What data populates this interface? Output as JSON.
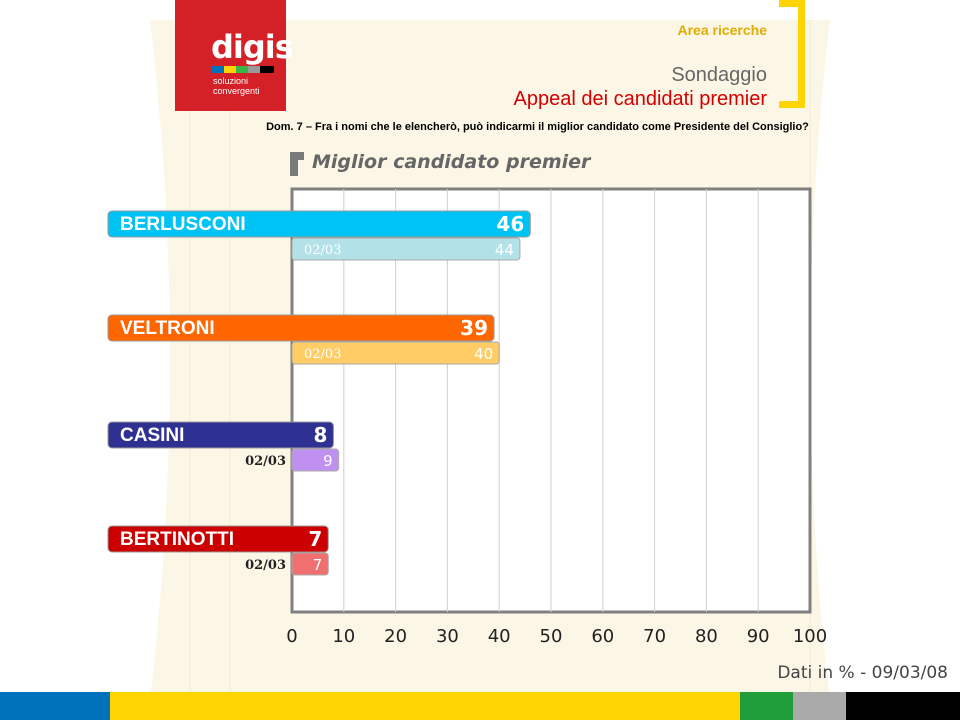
{
  "header": {
    "logo_word": "digis",
    "logo_sub_1": "soluzioni",
    "logo_sub_2": "convergenti",
    "area": "Area ricerche",
    "sondaggio": "Sondaggio",
    "subtitle": "Appeal dei candidati premier"
  },
  "question": "Dom. 7 –  Fra i nomi che le elencherò, può indicarmi il miglior candidato come Presidente del Consiglio?",
  "footer_note": "Dati in % - 09/03/08",
  "colors": {
    "accent_yellow": "#ffd400",
    "logo_red": "#d42027",
    "title_red": "#d40000"
  },
  "chart_data": {
    "type": "bar",
    "orientation": "horizontal",
    "title": "Miglior candidato premier",
    "categories": [
      "BERLUSCONI",
      "VELTRONI",
      "CASINI",
      "BERTINOTTI"
    ],
    "series": [
      {
        "values": [
          46,
          39,
          8,
          7
        ]
      },
      {
        "name": "02/03",
        "values": [
          44,
          40,
          9,
          7
        ]
      }
    ],
    "colors_current": [
      "#00c3f5",
      "#ff6600",
      "#2e3192",
      "#cc0000"
    ],
    "colors_previous": [
      "#b2e2e8",
      "#ffcc66",
      "#c090f0",
      "#f07070"
    ],
    "xlim": [
      0,
      100
    ],
    "xticks": [
      0,
      10,
      20,
      30,
      40,
      50,
      60,
      70,
      80,
      90,
      100
    ],
    "grid": true
  }
}
